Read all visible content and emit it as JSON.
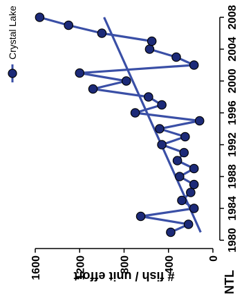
{
  "chart_data": {
    "type": "line",
    "panel_label": "NTL",
    "xlabel": "",
    "ylabel": "# fish / unit effort",
    "x_ticks": [
      "1980",
      "1984",
      "1988",
      "1992",
      "1996",
      "2000",
      "2004",
      "2008"
    ],
    "y_ticks": [
      "0",
      "400",
      "800",
      "1200",
      "1600"
    ],
    "xlim": [
      1980,
      2008
    ],
    "ylim": [
      0,
      1600
    ],
    "legend_position": "top-right",
    "series_color": "#3a4fa6",
    "marker_fill": "#1c2a78",
    "series": [
      {
        "name": "Crystal Lake",
        "x": [
          1981,
          1982,
          1983,
          1984,
          1985,
          1986,
          1987,
          1988,
          1989,
          1990,
          1991,
          1992,
          1993,
          1994,
          1995,
          1996,
          1997,
          1998,
          1999,
          2000,
          2001,
          2002,
          2003,
          2004,
          2005,
          2006,
          2007,
          2008
        ],
        "y": [
          380,
          220,
          650,
          170,
          280,
          200,
          170,
          300,
          170,
          320,
          260,
          460,
          250,
          480,
          120,
          700,
          460,
          580,
          1080,
          780,
          1200,
          170,
          330,
          570,
          550,
          1000,
          1300,
          1560
        ]
      }
    ],
    "trend_line": {
      "x": [
        1981,
        2008
      ],
      "y": [
        110,
        980
      ]
    }
  }
}
